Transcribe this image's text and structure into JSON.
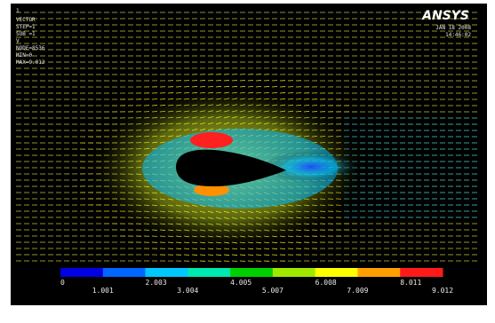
{
  "window_number": "1",
  "info": [
    "VECTOR",
    "STEP=1",
    "SUB =1",
    "V",
    "NODE=8536",
    "MIN=0",
    "MAX=9.012"
  ],
  "logo": "ANSYS",
  "date": "JAN 18 2008",
  "time": "14:46:02",
  "legend": {
    "upper": [
      "0",
      "2.003",
      "4.005",
      "6.008",
      "8.011"
    ],
    "lower": [
      "1.001",
      "3.004",
      "5.007",
      "7.009",
      "9.012"
    ],
    "colors": [
      "#0000e0",
      "#0066ff",
      "#00c8ff",
      "#00e8b0",
      "#00d000",
      "#a0e800",
      "#ffff00",
      "#ffa000",
      "#ff1a1a"
    ]
  }
}
